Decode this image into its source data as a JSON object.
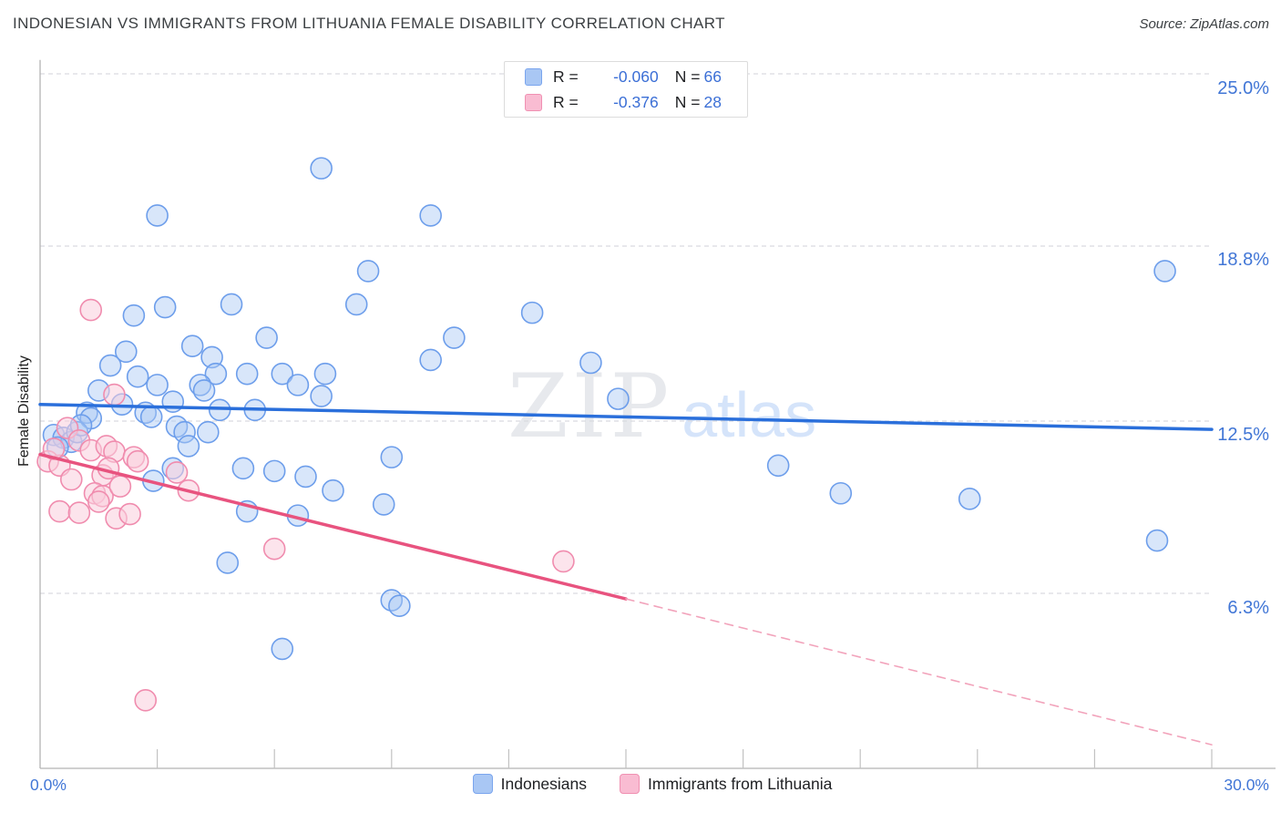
{
  "title": "INDONESIAN VS IMMIGRANTS FROM LITHUANIA FEMALE DISABILITY CORRELATION CHART",
  "source": "Source: ZipAtlas.com",
  "watermark": {
    "zip": "ZIP",
    "atlas": "atlas"
  },
  "y_axis": {
    "label": "Female Disability",
    "tick_labels": [
      "25.0%",
      "18.8%",
      "12.5%",
      "6.3%"
    ]
  },
  "x_axis": {
    "min_label": "0.0%",
    "max_label": "30.0%"
  },
  "legend_box": {
    "rows": [
      {
        "series": "Indonesians",
        "r_label": "R =",
        "r_value": "-0.060",
        "n_label": "N =",
        "n_value": "66"
      },
      {
        "series": "Immigrants from Lithuania",
        "r_label": "R =",
        "r_value": "-0.376",
        "n_label": "N =",
        "n_value": "28"
      }
    ]
  },
  "bottom_legend": [
    {
      "label": "Indonesians"
    },
    {
      "label": "Immigrants from Lithuania"
    }
  ],
  "colors": {
    "blue_point_stroke": "#6d9eeb",
    "blue_point_fill": "rgba(168,199,245,0.45)",
    "pink_point_stroke": "#f08cae",
    "pink_point_fill": "rgba(250,205,220,0.55)",
    "blue_trend": "#2a6fdb",
    "pink_trend": "#e8537f",
    "pink_trend_dashed": "#f2a3bb",
    "gridline": "#d9dbe0",
    "axis": "#b3b3b3",
    "tick": "#c2c2c2",
    "axis_label_blue": "#4176d6"
  },
  "chart_data": {
    "type": "scatter",
    "title": "INDONESIAN VS IMMIGRANTS FROM LITHUANIA FEMALE DISABILITY CORRELATION CHART",
    "xlabel": "",
    "ylabel": "Female Disability",
    "x_unit": "percent",
    "y_unit": "percent",
    "xlim": [
      0,
      30
    ],
    "ylim": [
      0,
      25.5
    ],
    "x_tick_step": 3,
    "y_gridlines": [
      25.0,
      18.8,
      12.5,
      6.3
    ],
    "grid": "dashed-horizontal",
    "legend_position": "top-center",
    "series": [
      {
        "name": "Indonesians",
        "R": -0.06,
        "N": 66,
        "points": [
          [
            7.2,
            21.6
          ],
          [
            3.0,
            19.9
          ],
          [
            10.0,
            19.9
          ],
          [
            8.4,
            17.9
          ],
          [
            28.8,
            17.9
          ],
          [
            8.1,
            16.7
          ],
          [
            4.9,
            16.7
          ],
          [
            3.2,
            16.6
          ],
          [
            2.4,
            16.3
          ],
          [
            12.6,
            16.4
          ],
          [
            10.6,
            15.5
          ],
          [
            5.8,
            15.5
          ],
          [
            3.9,
            15.2
          ],
          [
            2.2,
            15.0
          ],
          [
            4.4,
            14.8
          ],
          [
            1.8,
            14.5
          ],
          [
            10.0,
            14.7
          ],
          [
            14.1,
            14.6
          ],
          [
            2.5,
            14.1
          ],
          [
            4.5,
            14.2
          ],
          [
            5.3,
            14.2
          ],
          [
            6.2,
            14.2
          ],
          [
            7.3,
            14.2
          ],
          [
            6.6,
            13.8
          ],
          [
            7.2,
            13.4
          ],
          [
            1.5,
            13.6
          ],
          [
            3.0,
            13.8
          ],
          [
            4.1,
            13.8
          ],
          [
            4.2,
            13.6
          ],
          [
            3.4,
            13.2
          ],
          [
            4.6,
            12.9
          ],
          [
            5.5,
            12.9
          ],
          [
            14.8,
            13.3
          ],
          [
            1.2,
            12.8
          ],
          [
            1.3,
            12.6
          ],
          [
            2.7,
            12.8
          ],
          [
            2.85,
            12.65
          ],
          [
            3.5,
            12.3
          ],
          [
            3.7,
            12.1
          ],
          [
            4.3,
            12.1
          ],
          [
            0.35,
            12.0
          ],
          [
            0.6,
            11.9
          ],
          [
            0.8,
            11.75
          ],
          [
            0.95,
            12.1
          ],
          [
            3.8,
            11.6
          ],
          [
            9.0,
            11.2
          ],
          [
            5.2,
            10.8
          ],
          [
            6.0,
            10.7
          ],
          [
            6.8,
            10.5
          ],
          [
            7.5,
            10.0
          ],
          [
            3.4,
            10.8
          ],
          [
            2.9,
            10.35
          ],
          [
            18.9,
            10.9
          ],
          [
            20.5,
            9.9
          ],
          [
            23.8,
            9.7
          ],
          [
            28.6,
            8.2
          ],
          [
            8.8,
            9.5
          ],
          [
            5.3,
            9.25
          ],
          [
            6.6,
            9.1
          ],
          [
            4.8,
            7.4
          ],
          [
            9.0,
            6.05
          ],
          [
            9.2,
            5.85
          ],
          [
            6.2,
            4.3
          ],
          [
            0.45,
            11.55
          ],
          [
            1.05,
            12.35
          ],
          [
            2.1,
            13.1
          ]
        ]
      },
      {
        "name": "Immigrants from Lithuania",
        "R": -0.376,
        "N": 28,
        "points": [
          [
            1.3,
            16.5
          ],
          [
            1.9,
            13.45
          ],
          [
            0.7,
            12.25
          ],
          [
            1.0,
            11.8
          ],
          [
            0.2,
            11.05
          ],
          [
            0.5,
            10.9
          ],
          [
            1.3,
            11.45
          ],
          [
            1.7,
            11.6
          ],
          [
            1.9,
            11.4
          ],
          [
            2.4,
            11.2
          ],
          [
            2.5,
            11.05
          ],
          [
            1.6,
            10.55
          ],
          [
            1.75,
            10.8
          ],
          [
            0.8,
            10.4
          ],
          [
            3.5,
            10.65
          ],
          [
            3.8,
            10.0
          ],
          [
            1.4,
            9.9
          ],
          [
            1.6,
            9.8
          ],
          [
            0.5,
            9.25
          ],
          [
            1.0,
            9.2
          ],
          [
            1.5,
            9.6
          ],
          [
            1.95,
            9.0
          ],
          [
            2.3,
            9.15
          ],
          [
            6.0,
            7.9
          ],
          [
            13.4,
            7.45
          ],
          [
            2.7,
            2.45
          ],
          [
            0.35,
            11.5
          ],
          [
            2.05,
            10.15
          ]
        ]
      }
    ],
    "trend_lines": [
      {
        "series": "Indonesians",
        "start": [
          0,
          13.1
        ],
        "end": [
          30,
          12.2
        ],
        "style": "solid"
      },
      {
        "series": "Immigrants from Lithuania",
        "start": [
          0,
          11.3
        ],
        "end": [
          15,
          6.1
        ],
        "style": "solid"
      },
      {
        "series": "Immigrants from Lithuania",
        "start": [
          15,
          6.1
        ],
        "end": [
          30,
          0.85
        ],
        "style": "dashed"
      }
    ]
  }
}
